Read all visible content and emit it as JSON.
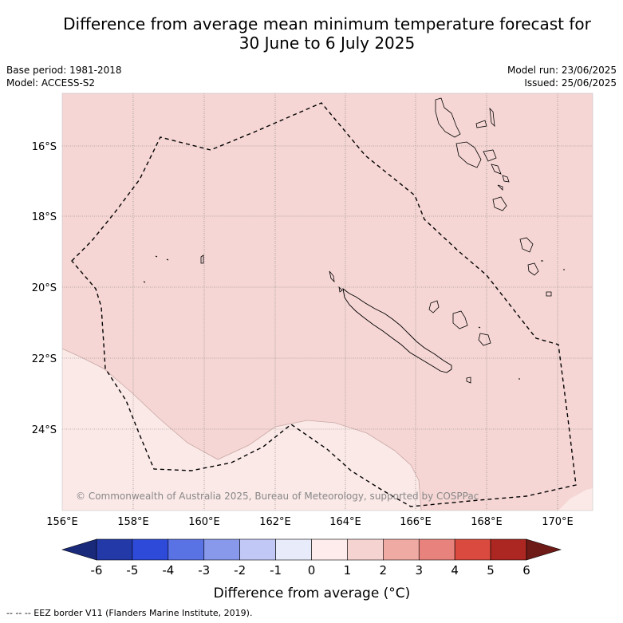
{
  "title_line1": "Difference from average mean minimum temperature forecast for",
  "title_line2": "30 June to 6 July 2025",
  "meta": {
    "base_period": "Base period: 1981-2018",
    "model": "Model: ACCESS-S2",
    "model_run": "Model run: 23/06/2025",
    "issued": "Issued: 25/06/2025"
  },
  "map": {
    "lon_labels": [
      "156°E",
      "158°E",
      "160°E",
      "162°E",
      "164°E",
      "166°E",
      "168°E",
      "170°E"
    ],
    "lat_labels": [
      "16°S",
      "18°S",
      "20°S",
      "22°S",
      "24°S"
    ],
    "copyright": "© Commonwealth of Australia 2025, Bureau of Meteorology, supported by COSPPac",
    "anomaly_fill_main": "#f5d6d4",
    "anomaly_fill_light": "#fbe9e7"
  },
  "colorbar": {
    "ticks": [
      "-6",
      "-5",
      "-4",
      "-3",
      "-2",
      "-1",
      "0",
      "1",
      "2",
      "3",
      "4",
      "5",
      "6"
    ],
    "colors": [
      "#2339a8",
      "#2d4ad9",
      "#5a73e4",
      "#8898eb",
      "#c2c8f5",
      "#e8ebfa",
      "#fdeceb",
      "#f5d3d1",
      "#efaaa4",
      "#e7837c",
      "#da4a3e",
      "#ac2722"
    ],
    "under_color": "#1a2a7a",
    "over_color": "#6e1a17",
    "label": "Difference from average (°C)"
  },
  "footer": "--  --  -- EEZ border V11 (Flanders Marine Institute, 2019)."
}
